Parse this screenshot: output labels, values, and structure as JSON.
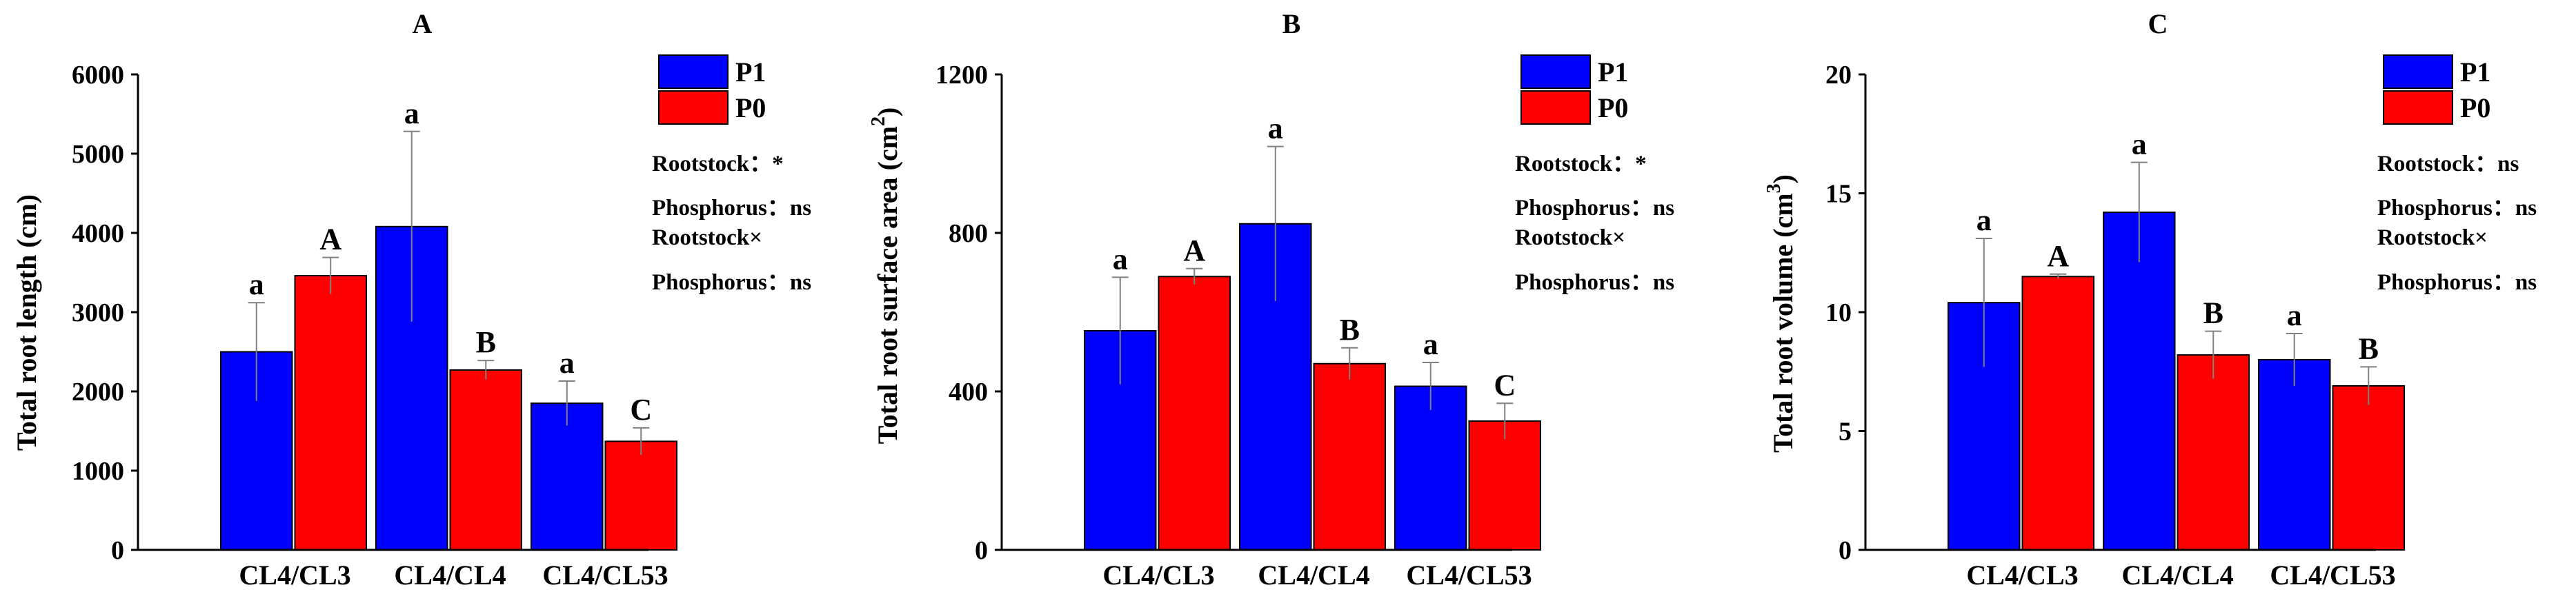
{
  "colors": {
    "P1": "#0000ff",
    "P0": "#ff0000",
    "axis": "#000000",
    "error": "#808080"
  },
  "chart_data": [
    {
      "type": "bar",
      "title": "A",
      "ylabel": "Total root length (cm)",
      "ylabel_superscript": "",
      "categories": [
        "CL4/CL3",
        "CL4/CL4",
        "CL4/CL53"
      ],
      "ylim": [
        0,
        6000
      ],
      "yticks": [
        0,
        1000,
        2000,
        3000,
        4000,
        5000,
        6000
      ],
      "series": [
        {
          "name": "P1",
          "values": [
            2500,
            4080,
            1850
          ],
          "errors": [
            620,
            1200,
            280
          ],
          "letters": [
            "a",
            "a",
            "a"
          ]
        },
        {
          "name": "P0",
          "values": [
            3460,
            2270,
            1370
          ],
          "errors": [
            230,
            120,
            170
          ],
          "letters": [
            "A",
            "B",
            "C"
          ]
        }
      ],
      "annotations": [
        "Rootstock：*",
        "Phosphorus：ns",
        "Rootstock×",
        "Phosphorus：ns"
      ],
      "legend": "top-right",
      "grid": false
    },
    {
      "type": "bar",
      "title": "B",
      "ylabel": "Total root surface area  (cm",
      "ylabel_superscript": "2",
      "ylabel_suffix": ")",
      "categories": [
        "CL4/CL3",
        "CL4/CL4",
        "CL4/CL53"
      ],
      "ylim": [
        0,
        1200
      ],
      "yticks": [
        0,
        400,
        800,
        1200
      ],
      "series": [
        {
          "name": "P1",
          "values": [
            553,
            823,
            413
          ],
          "errors": [
            135,
            195,
            60
          ],
          "letters": [
            "a",
            "a",
            "a"
          ]
        },
        {
          "name": "P0",
          "values": [
            690,
            470,
            325
          ],
          "errors": [
            20,
            40,
            45
          ],
          "letters": [
            "A",
            "B",
            "C"
          ]
        }
      ],
      "annotations": [
        "Rootstock：*",
        "Phosphorus：ns",
        "Rootstock×",
        "Phosphorus：ns"
      ],
      "legend": "top-right",
      "grid": false
    },
    {
      "type": "bar",
      "title": "C",
      "ylabel": "Total root volume  (cm",
      "ylabel_superscript": "3",
      "ylabel_suffix": ")",
      "categories": [
        "CL4/CL3",
        "CL4/CL4",
        "CL4/CL53"
      ],
      "ylim": [
        0,
        20
      ],
      "yticks": [
        0,
        5,
        10,
        15,
        20
      ],
      "series": [
        {
          "name": "P1",
          "values": [
            10.4,
            14.2,
            8.0
          ],
          "errors": [
            2.7,
            2.1,
            1.1
          ],
          "letters": [
            "a",
            "a",
            "a"
          ]
        },
        {
          "name": "P0",
          "values": [
            11.5,
            8.2,
            6.9
          ],
          "errors": [
            0.1,
            1.0,
            0.8
          ],
          "letters": [
            "A",
            "B",
            "B"
          ]
        }
      ],
      "annotations": [
        "Rootstock：ns",
        "Phosphorus：ns",
        "Rootstock×",
        "Phosphorus：ns"
      ],
      "legend": "top-right",
      "grid": false
    }
  ]
}
